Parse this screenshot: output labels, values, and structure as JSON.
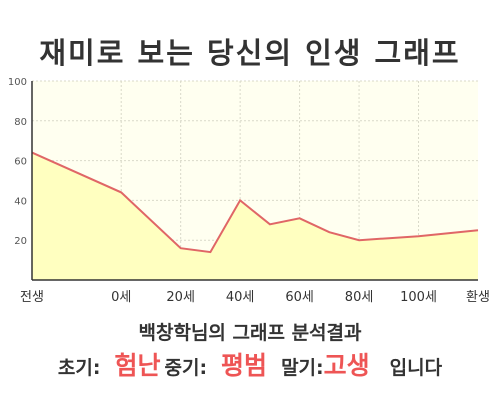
{
  "title": "재미로 보는 당신의 인생 그래프",
  "chart_data": {
    "type": "area",
    "x": [
      "전생",
      "0세",
      "20세",
      "40세",
      "60세",
      "80세",
      "100세",
      "환생"
    ],
    "y_ticks": [
      20,
      40,
      60,
      80,
      100
    ],
    "ylim": [
      0,
      100
    ],
    "grid": true,
    "series": [
      {
        "x": [
          -30,
          0,
          20,
          30,
          40,
          50,
          60,
          70,
          80,
          90,
          100,
          120
        ],
        "y": [
          64,
          44,
          16,
          14,
          40,
          28,
          31,
          24,
          20,
          21,
          22,
          25
        ]
      }
    ],
    "colors": {
      "line": "#e06666",
      "fill": "#ffffc0",
      "background": "#fffff0",
      "grid": "#d9d9c9"
    }
  },
  "summary": {
    "heading": "백창학님의 그래프 분석결과",
    "early_label": "초기:",
    "early_value": "험난",
    "middle_label": "중기:",
    "middle_value": "평범",
    "late_label": "말기:",
    "late_value": "고생",
    "ending": "입니다"
  }
}
